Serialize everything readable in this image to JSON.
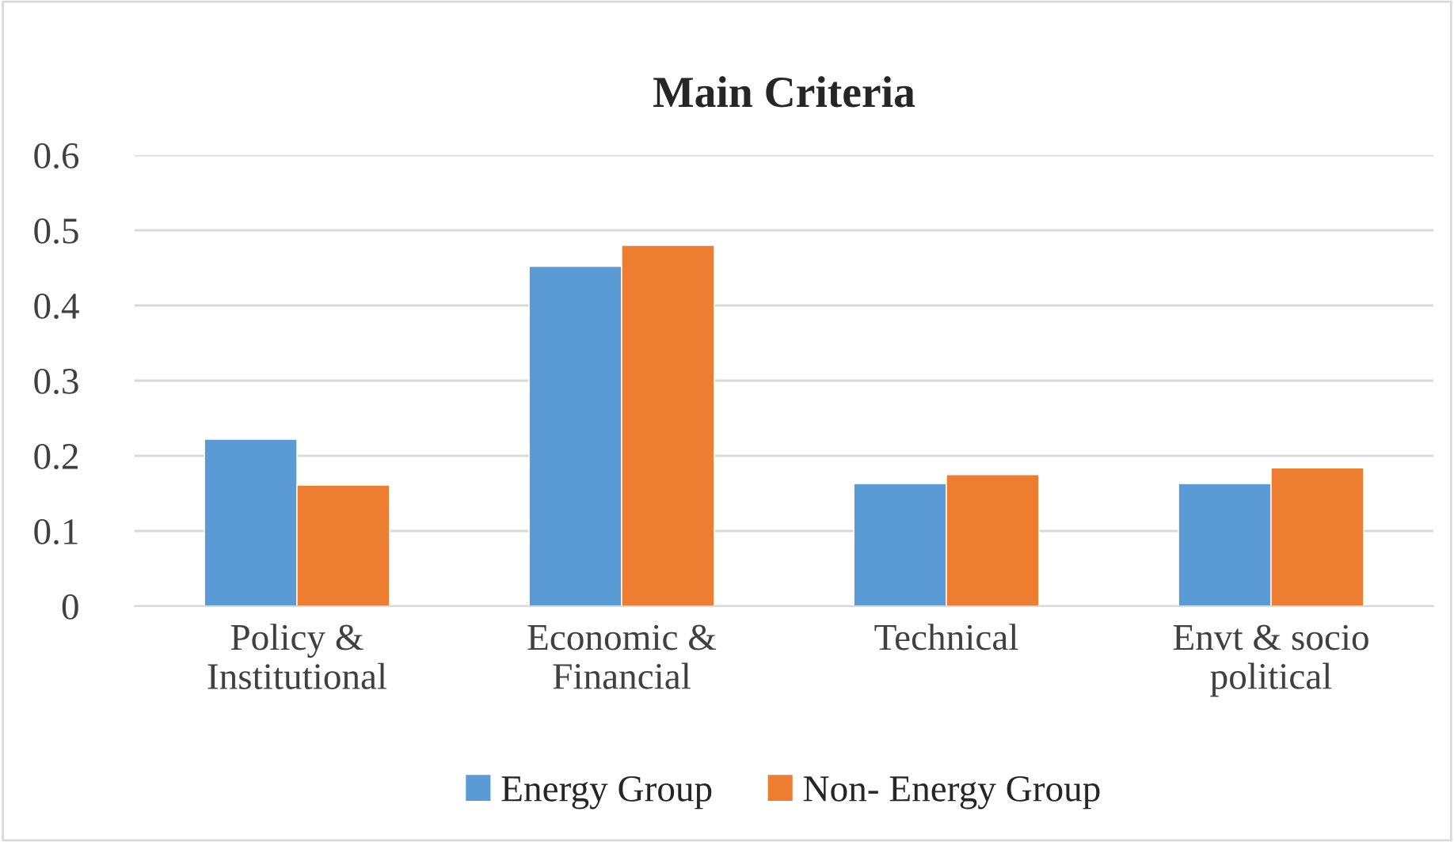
{
  "chart_data": {
    "type": "bar",
    "title": "Main Criteria",
    "categories": [
      "Policy &\nInstitutional",
      "Economic &\nFinancial",
      "Technical",
      "Envt & socio\npolitical"
    ],
    "series": [
      {
        "name": "Energy Group",
        "color": "#5b9bd5",
        "values": [
          0.222,
          0.452,
          0.163,
          0.163
        ]
      },
      {
        "name": "Non- Energy Group",
        "color": "#ed7d31",
        "values": [
          0.161,
          0.48,
          0.175,
          0.184
        ]
      }
    ],
    "ylim": [
      0,
      0.6
    ],
    "yticks": [
      0,
      0.1,
      0.2,
      0.3,
      0.4,
      0.5,
      0.6
    ],
    "grid": "y",
    "legend": "bottom"
  }
}
